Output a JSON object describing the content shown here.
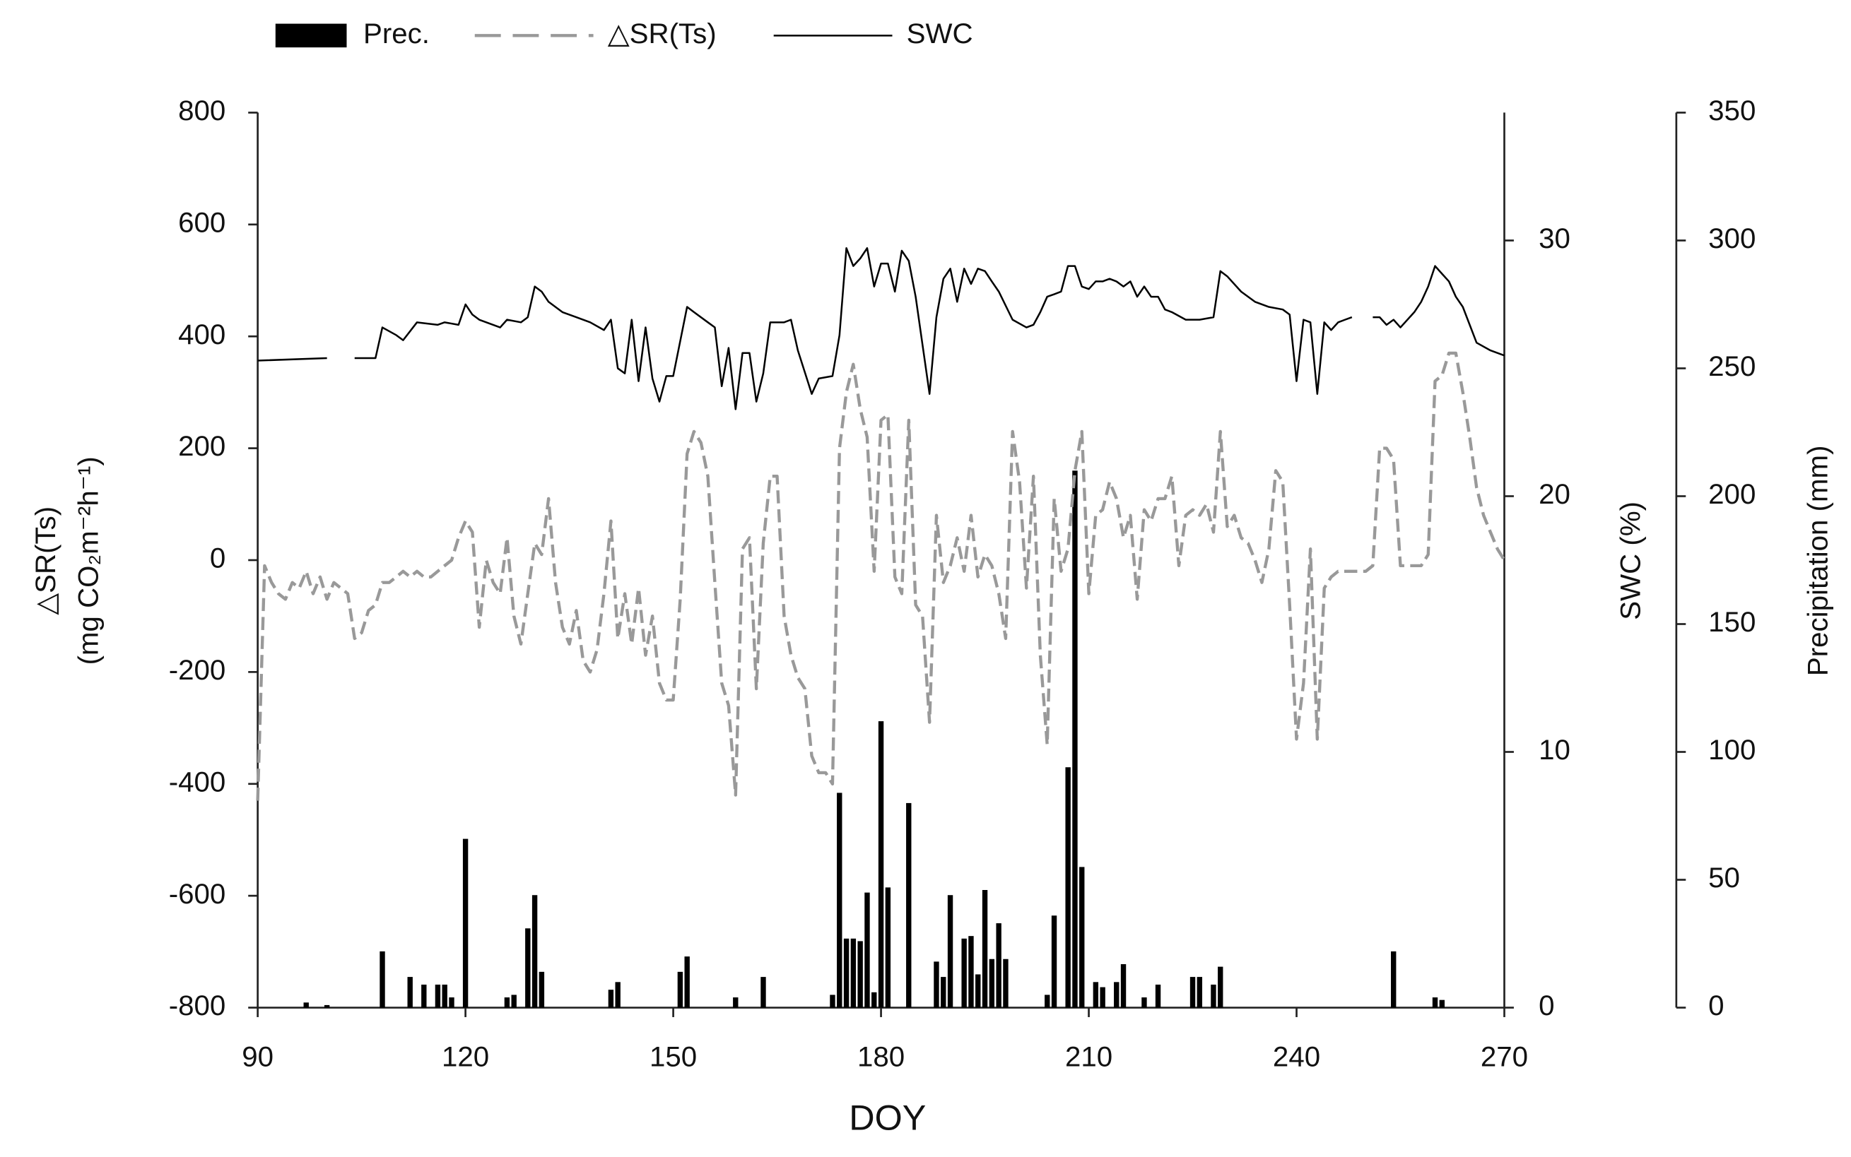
{
  "chart_data": {
    "type": "bar-line",
    "x_label": "DOY",
    "y_label": [
      "△SR(Ts)",
      "(mg CO₂m⁻²h⁻¹)"
    ],
    "y2_label": "SWC (%)",
    "y3_label": "Precipitation (mm)",
    "xlim": [
      90,
      270
    ],
    "xticks": [
      90,
      120,
      150,
      180,
      210,
      240,
      270
    ],
    "ylim": [
      -800,
      800
    ],
    "yticks": [
      -800,
      -600,
      -400,
      -200,
      0,
      200,
      400,
      600,
      800
    ],
    "y2lim": [
      0,
      35
    ],
    "y2ticks": [
      0,
      10,
      20,
      30
    ],
    "y3lim": [
      0,
      350
    ],
    "y3ticks": [
      0,
      50,
      100,
      150,
      200,
      250,
      300,
      350
    ],
    "series": [
      {
        "name": "Prec.",
        "type": "bar",
        "axis": "y3",
        "color": "#000000",
        "x": [
          97,
          100,
          108,
          112,
          114,
          116,
          117,
          118,
          120,
          126,
          127,
          129,
          130,
          131,
          141,
          142,
          151,
          152,
          159,
          163,
          173,
          174,
          175,
          176,
          177,
          178,
          179,
          180,
          181,
          184,
          188,
          189,
          190,
          192,
          193,
          194,
          195,
          196,
          197,
          198,
          204,
          205,
          207,
          208,
          209,
          211,
          212,
          214,
          215,
          218,
          220,
          225,
          226,
          228,
          229,
          254,
          260,
          261
        ],
        "values": [
          2,
          1,
          22,
          12,
          9,
          9,
          9,
          4,
          66,
          4,
          5,
          31,
          44,
          14,
          7,
          10,
          14,
          20,
          4,
          12,
          5,
          84,
          27,
          27,
          26,
          45,
          6,
          112,
          47,
          80,
          18,
          12,
          44,
          27,
          28,
          13,
          46,
          19,
          33,
          19,
          5,
          36,
          94,
          210,
          55,
          10,
          8,
          10,
          17,
          4,
          9,
          12,
          12,
          9,
          16,
          22,
          4,
          3
        ]
      },
      {
        "name": "△SR(Ts)",
        "type": "line",
        "dashed": true,
        "color": "#999999",
        "x": [
          90,
          91,
          92,
          93,
          94,
          95,
          96,
          97,
          98,
          99,
          100,
          101,
          102,
          103,
          104,
          105,
          106,
          107,
          108,
          109,
          110,
          111,
          112,
          113,
          114,
          115,
          116,
          117,
          118,
          119,
          120,
          121,
          122,
          123,
          124,
          125,
          126,
          127,
          128,
          129,
          130,
          131,
          132,
          133,
          134,
          135,
          136,
          137,
          138,
          139,
          140,
          141,
          142,
          143,
          144,
          145,
          146,
          147,
          148,
          149,
          150,
          151,
          152,
          153,
          154,
          155,
          156,
          157,
          158,
          159,
          160,
          161,
          162,
          163,
          164,
          165,
          166,
          167,
          168,
          169,
          170,
          171,
          172,
          173,
          174,
          175,
          176,
          177,
          178,
          179,
          180,
          181,
          182,
          183,
          184,
          185,
          186,
          187,
          188,
          189,
          190,
          191,
          192,
          193,
          194,
          195,
          196,
          197,
          198,
          199,
          200,
          201,
          202,
          203,
          204,
          205,
          206,
          207,
          208,
          209,
          210,
          211,
          212,
          213,
          214,
          215,
          216,
          217,
          218,
          219,
          220,
          221,
          222,
          223,
          224,
          225,
          226,
          227,
          228,
          229,
          230,
          231,
          232,
          233,
          234,
          235,
          236,
          237,
          238,
          239,
          240,
          241,
          242,
          243,
          244,
          245,
          246,
          247,
          248,
          250,
          251,
          252,
          253,
          254,
          255,
          256,
          257,
          258,
          259,
          260,
          261,
          262,
          263,
          264,
          265,
          266,
          267,
          268,
          269,
          270
        ],
        "values": [
          -430,
          -10,
          -40,
          -60,
          -70,
          -40,
          -50,
          -20,
          -60,
          -30,
          -70,
          -40,
          -50,
          -60,
          -140,
          -130,
          -90,
          -80,
          -40,
          -40,
          -30,
          -20,
          -30,
          -20,
          -30,
          -30,
          -20,
          -10,
          0,
          40,
          70,
          50,
          -120,
          0,
          -40,
          -60,
          40,
          -100,
          -150,
          -60,
          30,
          10,
          110,
          -40,
          -120,
          -150,
          -90,
          -180,
          -200,
          -160,
          -60,
          70,
          -140,
          -60,
          -150,
          -50,
          -170,
          -100,
          -220,
          -250,
          -250,
          -70,
          190,
          230,
          210,
          150,
          -40,
          -220,
          -260,
          -420,
          20,
          40,
          -230,
          30,
          150,
          150,
          -100,
          -170,
          -210,
          -230,
          -350,
          -380,
          -380,
          -400,
          200,
          300,
          350,
          270,
          220,
          -20,
          250,
          260,
          -30,
          -60,
          250,
          -80,
          -100,
          -290,
          80,
          -40,
          -10,
          40,
          -20,
          80,
          -30,
          10,
          -10,
          -60,
          -140,
          230,
          140,
          -50,
          150,
          -170,
          -330,
          110,
          -20,
          20,
          160,
          230,
          -60,
          80,
          90,
          140,
          110,
          40,
          80,
          -70,
          90,
          70,
          110,
          110,
          150,
          -10,
          80,
          90,
          80,
          100,
          50,
          230,
          60,
          80,
          40,
          30,
          0,
          -40,
          20,
          160,
          140,
          -80,
          -320,
          -220,
          20,
          -320,
          -50,
          -30,
          -20,
          -20,
          -20,
          -20,
          -10,
          200,
          200,
          180,
          -10,
          -10,
          -10,
          -10,
          10,
          320,
          330,
          370,
          370,
          300,
          220,
          130,
          80,
          50,
          20,
          0
        ]
      },
      {
        "name": "SWC",
        "type": "line",
        "axis": "y2",
        "color": "#000000",
        "x": [
          90,
          100,
          102,
          104,
          107,
          108,
          110,
          111,
          113,
          116,
          117,
          119,
          120,
          121,
          122,
          125,
          126,
          128,
          129,
          130,
          131,
          132,
          134,
          136,
          138,
          140,
          141,
          142,
          143,
          144,
          145,
          146,
          147,
          148,
          149,
          150,
          152,
          153,
          155,
          156,
          157,
          158,
          159,
          160,
          161,
          162,
          163,
          164,
          166,
          167,
          168,
          170,
          171,
          173,
          174,
          175,
          176,
          177,
          178,
          179,
          180,
          181,
          182,
          183,
          184,
          185,
          187,
          188,
          189,
          190,
          191,
          192,
          193,
          194,
          195,
          196,
          197,
          199,
          201,
          202,
          203,
          204,
          205,
          206,
          207,
          208,
          209,
          210,
          211,
          212,
          213,
          214,
          215,
          216,
          217,
          218,
          219,
          220,
          221,
          222,
          224,
          226,
          228,
          229,
          230,
          232,
          234,
          236,
          238,
          239,
          240,
          241,
          242,
          243,
          244,
          245,
          246,
          247,
          248,
          249,
          251,
          252,
          253,
          254,
          255,
          257,
          258,
          259,
          260,
          261,
          262,
          263,
          264,
          266,
          268,
          270
        ],
        "values": [
          25.3,
          25.4,
          null,
          25.4,
          25.4,
          26.6,
          26.3,
          26.1,
          26.8,
          26.7,
          26.8,
          26.7,
          27.5,
          27.1,
          26.9,
          26.6,
          26.9,
          26.8,
          27.0,
          28.2,
          28.0,
          27.6,
          27.2,
          27.0,
          26.8,
          26.5,
          26.9,
          25.0,
          24.8,
          26.9,
          24.5,
          26.6,
          24.6,
          23.7,
          24.7,
          24.7,
          27.4,
          27.2,
          26.8,
          26.6,
          24.3,
          25.8,
          23.4,
          25.6,
          25.6,
          23.7,
          24.8,
          26.8,
          26.8,
          26.9,
          25.7,
          24.0,
          24.6,
          24.7,
          26.3,
          29.7,
          29.0,
          29.3,
          29.7,
          28.2,
          29.1,
          29.1,
          28.0,
          29.6,
          29.2,
          27.8,
          24.0,
          27.0,
          28.5,
          28.9,
          27.6,
          28.9,
          28.3,
          28.9,
          28.8,
          28.4,
          28.0,
          26.9,
          26.6,
          26.7,
          27.2,
          27.8,
          27.9,
          28.0,
          29.0,
          29.0,
          28.2,
          28.1,
          28.4,
          28.4,
          28.5,
          28.4,
          28.2,
          28.4,
          27.8,
          28.2,
          27.8,
          27.8,
          27.3,
          27.2,
          26.9,
          26.9,
          27.0,
          28.8,
          28.6,
          28.0,
          27.6,
          27.4,
          27.3,
          27.1,
          24.5,
          26.9,
          26.8,
          24.0,
          26.8,
          26.5,
          26.8,
          26.9,
          27.0,
          null,
          27.0,
          27.0,
          26.7,
          26.9,
          26.6,
          27.2,
          27.6,
          28.2,
          29.0,
          28.7,
          28.4,
          27.8,
          27.4,
          26.0,
          25.7,
          25.5
        ]
      }
    ]
  }
}
